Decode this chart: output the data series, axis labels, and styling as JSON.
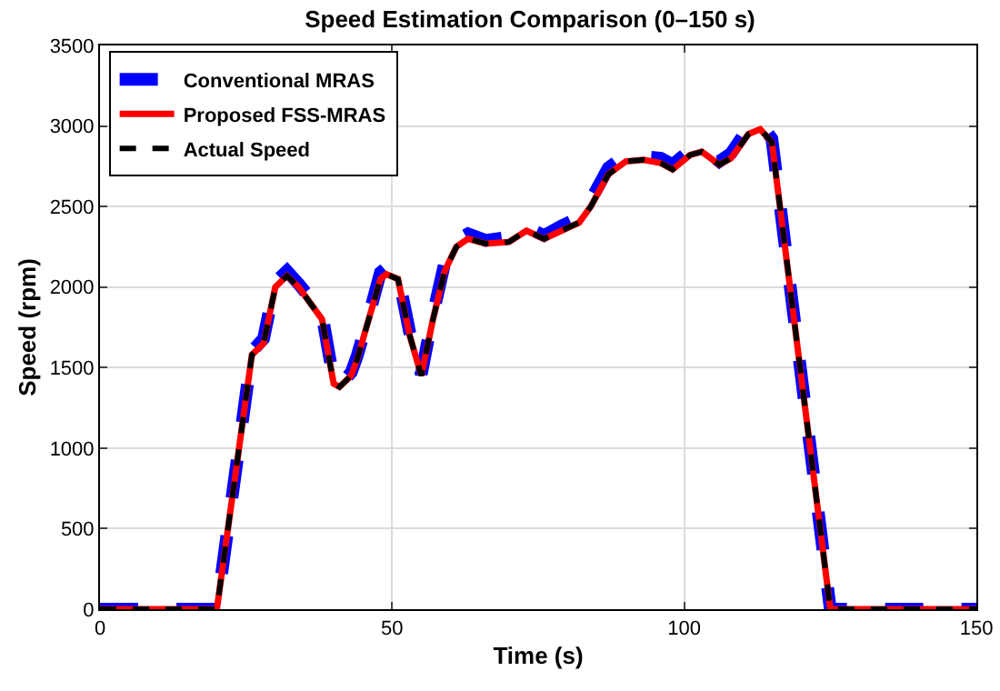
{
  "chart_data": {
    "type": "line",
    "title": "Speed Estimation Comparison (0–150 s)",
    "xlabel": "Time (s)",
    "ylabel": "Speed (rpm)",
    "x": [
      0,
      20,
      26,
      28,
      30,
      32,
      34,
      36,
      38,
      40,
      41,
      43,
      44,
      46,
      48,
      49,
      51,
      53,
      55,
      57,
      59,
      61,
      63,
      66,
      70,
      73,
      76,
      79,
      82,
      84,
      87,
      90,
      93,
      96,
      98,
      101,
      103,
      106,
      108,
      111,
      113,
      115,
      125,
      150
    ],
    "series": [
      {
        "name": "Conventional MRAS",
        "color": "#0000ff",
        "line_style": "dashed",
        "values": [
          0,
          0,
          1600,
          1680,
          2030,
          2100,
          2020,
          1930,
          1830,
          1420,
          1390,
          1470,
          1570,
          1820,
          2090,
          2120,
          2080,
          1720,
          1460,
          1830,
          2150,
          2290,
          2330,
          2290,
          2310,
          2370,
          2320,
          2380,
          2430,
          2540,
          2740,
          2820,
          2810,
          2800,
          2760,
          2850,
          2870,
          2780,
          2830,
          2990,
          3020,
          2920,
          0,
          0
        ]
      },
      {
        "name": "Proposed FSS-MRAS",
        "color": "#ff0000",
        "line_style": "solid",
        "values": [
          0,
          0,
          1580,
          1650,
          2000,
          2070,
          2000,
          1900,
          1800,
          1400,
          1380,
          1450,
          1550,
          1800,
          2050,
          2080,
          2050,
          1700,
          1450,
          1800,
          2100,
          2250,
          2300,
          2270,
          2280,
          2350,
          2300,
          2350,
          2400,
          2500,
          2700,
          2780,
          2790,
          2770,
          2730,
          2820,
          2840,
          2760,
          2800,
          2950,
          2980,
          2900,
          0,
          0
        ]
      },
      {
        "name": "Actual Speed",
        "color": "#000000",
        "line_style": "dashed",
        "values": [
          0,
          0,
          1580,
          1650,
          2000,
          2070,
          2000,
          1900,
          1800,
          1400,
          1380,
          1450,
          1550,
          1800,
          2050,
          2080,
          2050,
          1700,
          1450,
          1800,
          2100,
          2250,
          2300,
          2270,
          2280,
          2350,
          2300,
          2350,
          2400,
          2500,
          2700,
          2780,
          2790,
          2770,
          2730,
          2820,
          2840,
          2760,
          2800,
          2950,
          2980,
          2900,
          0,
          0
        ]
      }
    ],
    "xlim": [
      0,
      150
    ],
    "xticks": [
      0,
      50,
      100,
      150
    ],
    "ylim": [
      0,
      3500
    ],
    "yticks": [
      0,
      500,
      1000,
      1500,
      2000,
      2500,
      3000,
      3500
    ],
    "grid": true,
    "legend": "top left",
    "marker": "none"
  }
}
